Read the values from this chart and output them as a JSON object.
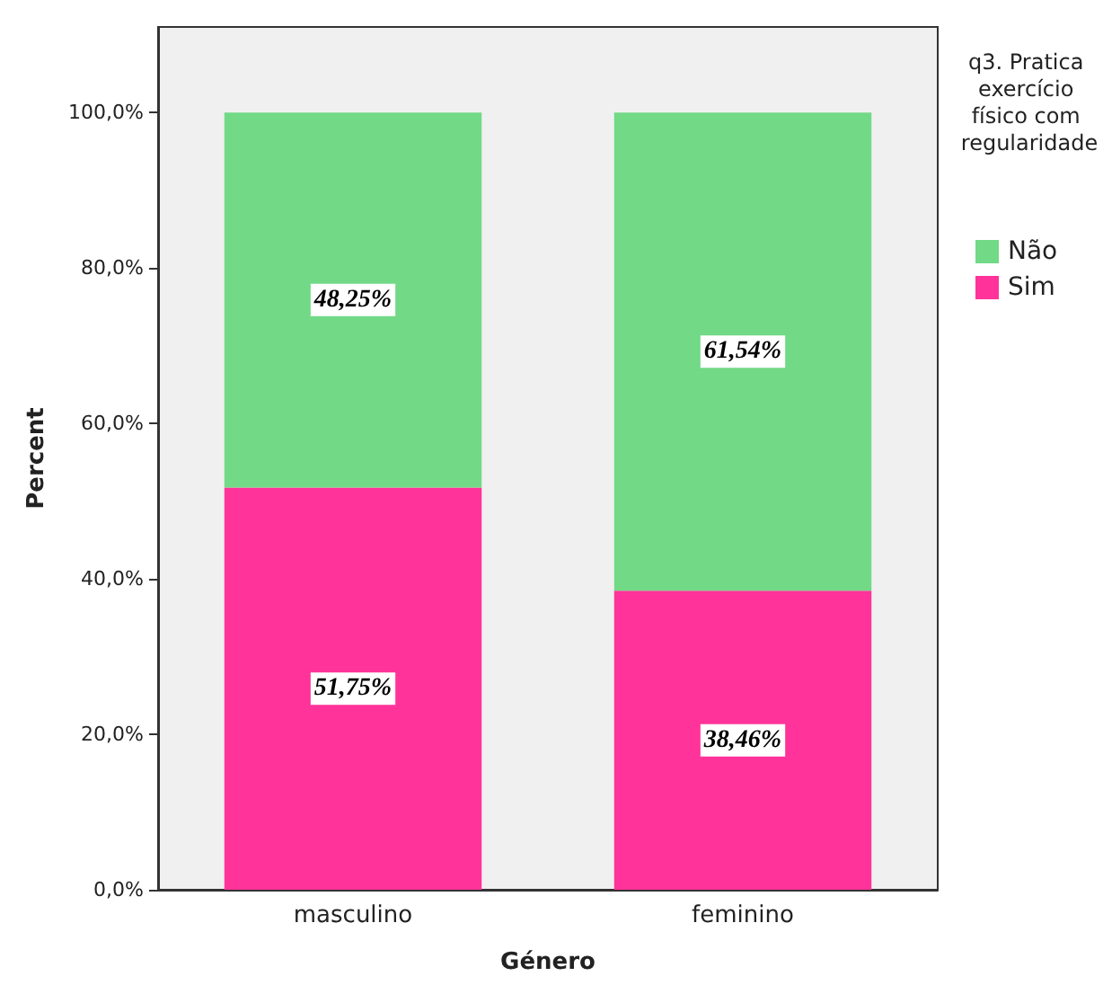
{
  "chart_data": {
    "type": "bar",
    "stacked": true,
    "xlabel": "Género",
    "ylabel": "Percent",
    "legend_title": "q3. Pratica exercício físico com regularidade",
    "legend": "right",
    "grid": false,
    "categories": [
      "masculino",
      "feminino"
    ],
    "ylim": [
      0,
      111
    ],
    "yticks": [
      {
        "value": 0,
        "label": "0,0%"
      },
      {
        "value": 20,
        "label": "20,0%"
      },
      {
        "value": 40,
        "label": "40,0%"
      },
      {
        "value": 60,
        "label": "60,0%"
      },
      {
        "value": 80,
        "label": "80,0%"
      },
      {
        "value": 100,
        "label": "100,0%"
      }
    ],
    "series": [
      {
        "name": "Sim",
        "color": "#ff3399",
        "values": [
          51.75,
          38.46
        ],
        "value_labels": [
          "51,75%",
          "38,46%"
        ]
      },
      {
        "name": "Não",
        "color": "#72d987",
        "values": [
          48.25,
          61.54
        ],
        "value_labels": [
          "48,25%",
          "61,54%"
        ]
      }
    ]
  }
}
